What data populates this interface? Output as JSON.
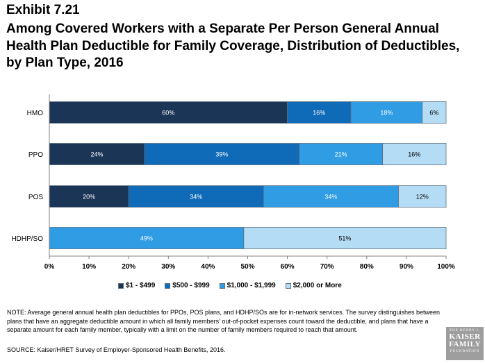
{
  "header": {
    "exhibit": "Exhibit 7.21",
    "title": "Among Covered Workers with a Separate Per Person General Annual Health Plan Deductible for Family Coverage, Distribution of Deductibles, by Plan Type, 2016"
  },
  "chart_data": {
    "type": "bar",
    "orientation": "horizontal",
    "stacked": true,
    "categories": [
      "HMO",
      "PPO",
      "POS",
      "HDHP/SO"
    ],
    "series": [
      {
        "name": "$1 - $499",
        "color": "#1b3556",
        "values": [
          60,
          24,
          20,
          0
        ]
      },
      {
        "name": "$500 - $999",
        "color": "#0f6bb7",
        "values": [
          16,
          39,
          34,
          0
        ]
      },
      {
        "name": "$1,000 - $1,999",
        "color": "#2f9ce3",
        "values": [
          18,
          21,
          34,
          49
        ]
      },
      {
        "name": "$2,000 or More",
        "color": "#b4dcf5",
        "values": [
          6,
          16,
          12,
          51
        ]
      }
    ],
    "x_ticks": [
      "0%",
      "10%",
      "20%",
      "30%",
      "40%",
      "50%",
      "60%",
      "70%",
      "80%",
      "90%",
      "100%"
    ],
    "xlim": [
      0,
      100
    ],
    "legend_position": "bottom",
    "grid": false
  },
  "footer": {
    "note": "NOTE:  Average general annual health plan deductibles for PPOs, POS plans, and HDHP/SOs are for in-network services. The survey distinguishes between plans that have an aggregate deductible amount in which all family members’ out-of-pocket expenses count toward the deductible, and plans that have a separate amount for each family member, typically with a limit on the number of family members required to reach that amount.",
    "source": "SOURCE:  Kaiser/HRET Survey of Employer-Sponsored Health Benefits, 2016.",
    "logo": {
      "line1": "THE HENRY J.",
      "line2": "KAISER FAMILY",
      "line3": "FOUNDATION"
    }
  }
}
